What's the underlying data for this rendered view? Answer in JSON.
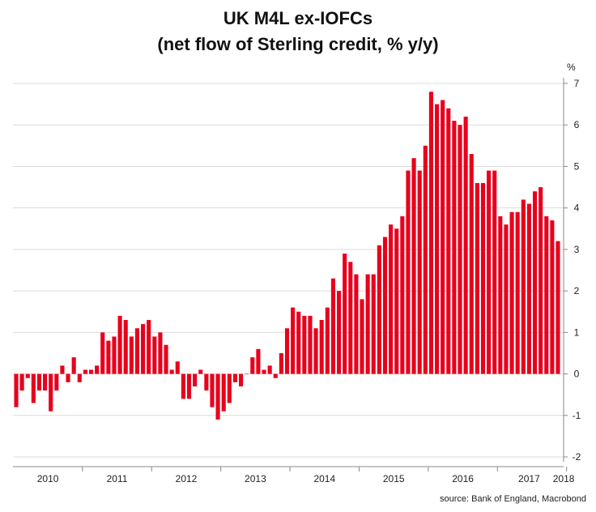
{
  "chart_data": {
    "type": "bar",
    "title": "UK M4L ex-IOFCs",
    "subtitle": "(net flow of Sterling credit, % y/y)",
    "unit": "%",
    "source": "source: Bank of England, Macrobond",
    "bar_color": "#e8001c",
    "ylim": [
      -2,
      7
    ],
    "yticks": [
      7,
      6,
      5,
      4,
      3,
      2,
      1,
      0,
      -1,
      -2
    ],
    "y_axis_position": "right",
    "grid": true,
    "x_start": "2010-01",
    "x_end": "2018-03",
    "year_labels": [
      "2010",
      "2011",
      "2012",
      "2013",
      "2014",
      "2015",
      "2016",
      "2017",
      "2018"
    ],
    "values": [
      -0.8,
      -0.4,
      -0.1,
      -0.7,
      -0.4,
      -0.4,
      -0.9,
      -0.4,
      0.2,
      -0.2,
      0.4,
      -0.2,
      0.1,
      0.1,
      0.2,
      1.0,
      0.8,
      0.9,
      1.4,
      1.3,
      0.9,
      1.1,
      1.2,
      1.3,
      0.9,
      1.0,
      0.7,
      0.1,
      0.3,
      -0.6,
      -0.6,
      -0.3,
      0.1,
      -0.4,
      -0.8,
      -1.1,
      -0.9,
      -0.7,
      -0.2,
      -0.3,
      0.0,
      0.4,
      0.6,
      0.1,
      0.2,
      -0.1,
      0.5,
      1.1,
      1.6,
      1.5,
      1.4,
      1.4,
      1.1,
      1.3,
      1.6,
      2.3,
      2.0,
      2.9,
      2.7,
      2.4,
      1.8,
      2.4,
      2.4,
      3.1,
      3.3,
      3.6,
      3.5,
      3.8,
      4.9,
      5.2,
      4.9,
      5.5,
      6.8,
      6.5,
      6.6,
      6.4,
      6.1,
      6.0,
      6.2,
      5.3,
      4.6,
      4.6,
      4.9,
      4.9,
      3.8,
      3.6,
      3.9,
      3.9,
      4.2,
      4.1,
      4.4,
      4.5,
      3.8,
      3.7,
      3.2
    ]
  }
}
